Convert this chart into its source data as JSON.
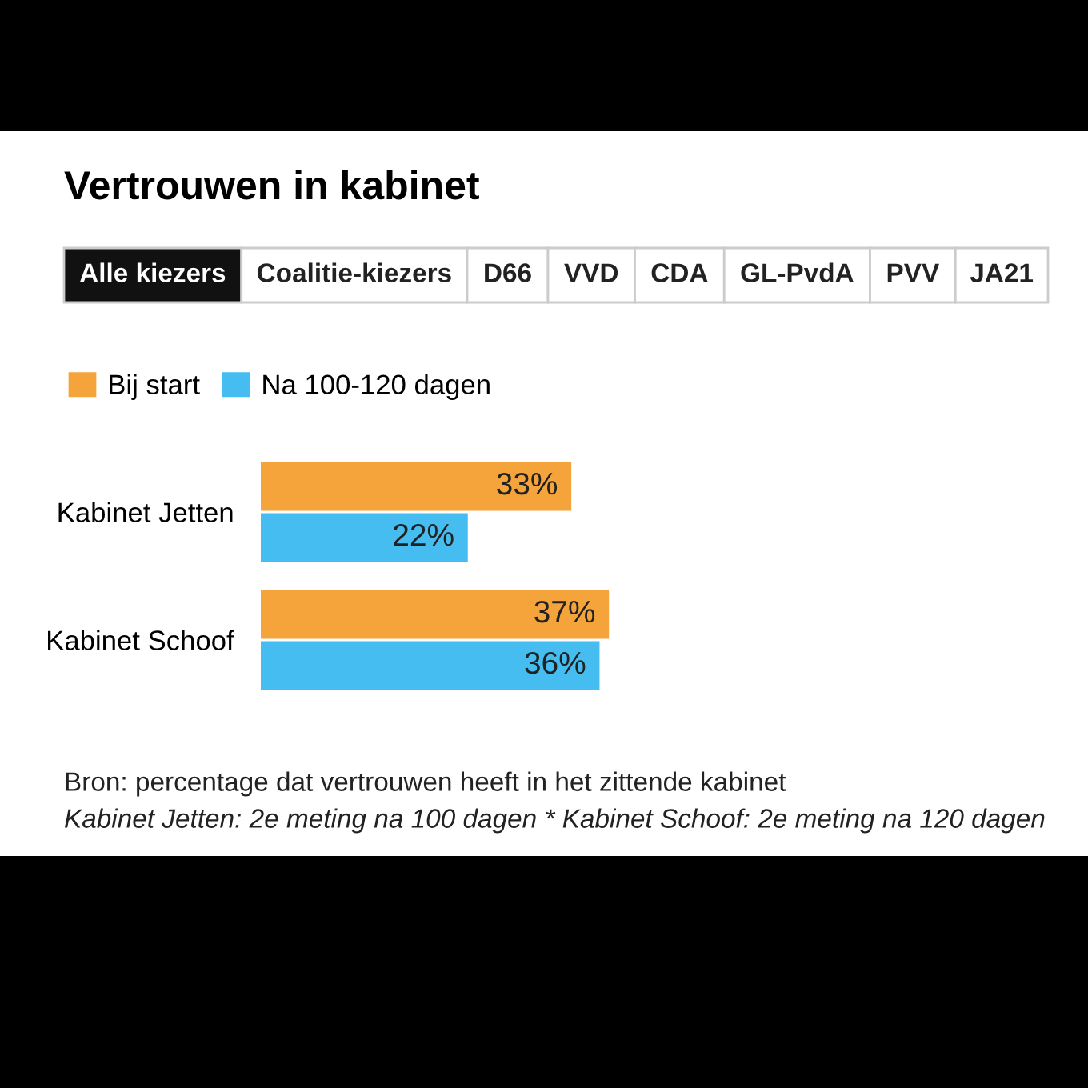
{
  "chart_data": {
    "type": "bar",
    "orientation": "horizontal",
    "title": "Vertrouwen in kabinet",
    "categories": [
      "Kabinet Jetten",
      "Kabinet Schoof"
    ],
    "series": [
      {
        "name": "Bij start",
        "color": "#f5a33b",
        "values": [
          33,
          37
        ],
        "value_labels": [
          "33%",
          "37%"
        ]
      },
      {
        "name": "Na 100-120 dagen",
        "color": "#45bdf0",
        "values": [
          22,
          36
        ],
        "value_labels": [
          "22%",
          "36%"
        ]
      }
    ],
    "legend": "top left",
    "grid": false,
    "annotations": [
      "Alle kiezers",
      "Coalitie-kiezers",
      "D66",
      "VVD",
      "CDA",
      "GL-PvdA",
      "PVV",
      "JA21",
      "Bron: percentage dat vertrouwen heeft in het zittende kabinet",
      "Kabinet Jetten: 2e meting na 100 dagen * Kabinet Schoof: 2e meting na 120 dagen"
    ]
  }
}
